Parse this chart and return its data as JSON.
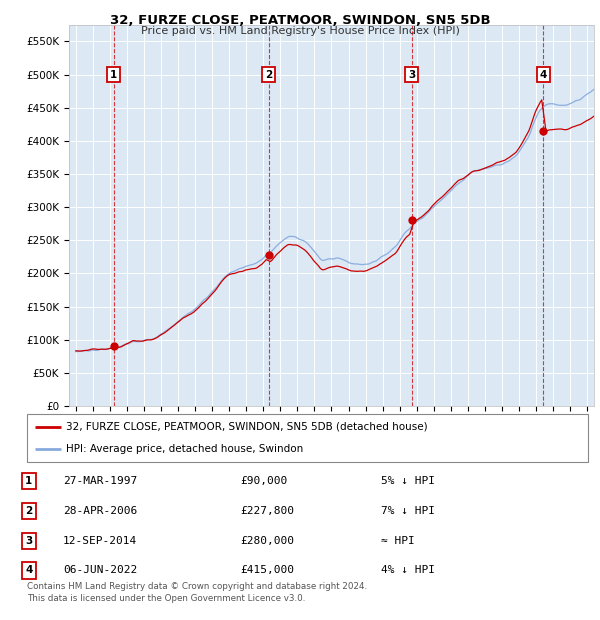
{
  "title": "32, FURZE CLOSE, PEATMOOR, SWINDON, SN5 5DB",
  "subtitle": "Price paid vs. HM Land Registry's House Price Index (HPI)",
  "plot_bg_color": "#dce9f5",
  "ylim": [
    0,
    575000
  ],
  "yticks": [
    0,
    50000,
    100000,
    150000,
    200000,
    250000,
    300000,
    350000,
    400000,
    450000,
    500000,
    550000
  ],
  "ytick_labels": [
    "£0",
    "£50K",
    "£100K",
    "£150K",
    "£200K",
    "£250K",
    "£300K",
    "£350K",
    "£400K",
    "£450K",
    "£500K",
    "£550K"
  ],
  "xlim_start": 1994.6,
  "xlim_end": 2025.4,
  "sales": [
    {
      "num": 1,
      "date": 1997.23,
      "price": 90000
    },
    {
      "num": 2,
      "date": 2006.32,
      "price": 227800
    },
    {
      "num": 3,
      "date": 2014.7,
      "price": 280000
    },
    {
      "num": 4,
      "date": 2022.43,
      "price": 415000
    }
  ],
  "sale_color": "#cc0000",
  "hpi_color": "#88aadd",
  "legend_entries": [
    "32, FURZE CLOSE, PEATMOOR, SWINDON, SN5 5DB (detached house)",
    "HPI: Average price, detached house, Swindon"
  ],
  "table_rows": [
    {
      "num": 1,
      "date": "27-MAR-1997",
      "price": "£90,000",
      "hpi": "5% ↓ HPI"
    },
    {
      "num": 2,
      "date": "28-APR-2006",
      "price": "£227,800",
      "hpi": "7% ↓ HPI"
    },
    {
      "num": 3,
      "date": "12-SEP-2014",
      "price": "£280,000",
      "hpi": "≈ HPI"
    },
    {
      "num": 4,
      "date": "06-JUN-2022",
      "price": "£415,000",
      "hpi": "4% ↓ HPI"
    }
  ],
  "footnote1": "Contains HM Land Registry data © Crown copyright and database right 2024.",
  "footnote2": "This data is licensed under the Open Government Licence v3.0."
}
